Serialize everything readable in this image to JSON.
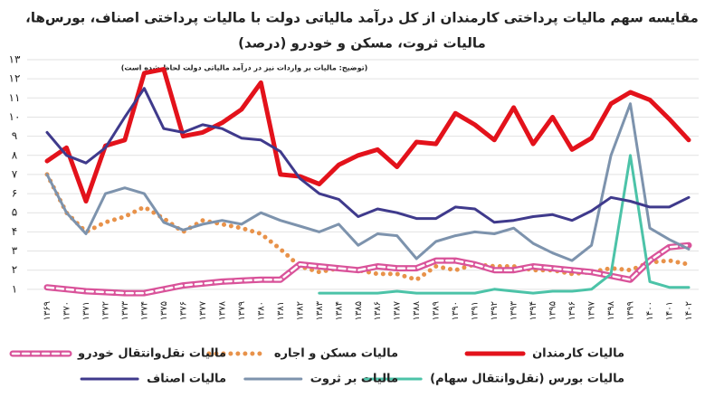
{
  "chart_data": {
    "type": "line",
    "title": "مقایسه سهم مالیات پرداختی کارمندان از کل درآمد مالیاتی دولت با مالیات پرداختی اصناف، بورس‌ها،",
    "subtitle": "مالیات ثروت، مسکن و خودرو (درصد)",
    "note": "(توضیح: مالیات بر واردات نیز در درآمد مالیاتی دولت لحاظ شده است)",
    "categories": [
      "۱۳۶۹",
      "۱۳۷۰",
      "۱۳۷۱",
      "۱۳۷۲",
      "۱۳۷۳",
      "۱۳۷۴",
      "۱۳۷۵",
      "۱۳۷۶",
      "۱۳۷۷",
      "۱۳۷۸",
      "۱۳۷۹",
      "۱۳۸۰",
      "۱۳۸۱",
      "۱۳۸۲",
      "۱۳۸۳",
      "۱۳۸۴",
      "۱۳۸۵",
      "۱۳۸۶",
      "۱۳۸۷",
      "۱۳۸۸",
      "۱۳۸۹",
      "۱۳۹۰",
      "۱۳۹۱",
      "۱۳۹۲",
      "۱۳۹۳",
      "۱۳۹۴",
      "۱۳۹۵",
      "۱۳۹۶",
      "۱۳۹۷",
      "۱۳۹۸",
      "۱۳۹۹",
      "۱۴۰۰",
      "۱۴۰۱",
      "۱۴۰۲"
    ],
    "ylim": [
      0,
      13
    ],
    "yticks": [
      {
        "value": 1,
        "label": "۱"
      },
      {
        "value": 2,
        "label": "۲"
      },
      {
        "value": 3,
        "label": "۳"
      },
      {
        "value": 4,
        "label": "۴"
      },
      {
        "value": 5,
        "label": "۵"
      },
      {
        "value": 6,
        "label": "۶"
      },
      {
        "value": 7,
        "label": "۷"
      },
      {
        "value": 8,
        "label": "۸"
      },
      {
        "value": 9,
        "label": "۹"
      },
      {
        "value": 10,
        "label": "۱۰"
      },
      {
        "value": 11,
        "label": "۱۱"
      },
      {
        "value": 12,
        "label": "۱۲"
      },
      {
        "value": 13,
        "label": "۱۳"
      }
    ],
    "grid": true,
    "series": [
      {
        "name": "مالیات کارمندان",
        "color": "#e3121b",
        "style": "bold",
        "values": [
          7.7,
          8.4,
          5.6,
          8.5,
          8.8,
          12.3,
          12.5,
          9.0,
          9.2,
          9.7,
          10.4,
          11.8,
          7.0,
          6.9,
          6.5,
          7.5,
          8.0,
          8.3,
          7.4,
          8.7,
          8.6,
          10.2,
          9.6,
          8.8,
          10.5,
          8.6,
          10.0,
          8.3,
          8.9,
          10.7,
          11.3,
          10.9,
          9.9,
          8.8
        ]
      },
      {
        "name": "مالیات مسکن و اجاره",
        "color": "#e8924a",
        "style": "dotted",
        "values": [
          7.0,
          5.0,
          4.0,
          4.5,
          4.8,
          5.3,
          4.7,
          4.0,
          4.6,
          4.4,
          4.2,
          3.9,
          3.1,
          2.2,
          1.9,
          2.1,
          2.0,
          1.8,
          1.8,
          1.5,
          2.2,
          2.0,
          2.3,
          2.2,
          2.2,
          2.0,
          2.0,
          1.8,
          1.9,
          2.1,
          2.0,
          2.4,
          2.5,
          2.3
        ]
      },
      {
        "name": "مالیات نقل‌وانتقال خودرو",
        "color": "#d9539a",
        "style": "striped",
        "values": [
          1.1,
          1.0,
          0.9,
          0.85,
          0.8,
          0.8,
          1.0,
          1.2,
          1.3,
          1.4,
          1.45,
          1.5,
          1.5,
          2.3,
          2.2,
          2.1,
          2.0,
          2.2,
          2.1,
          2.1,
          2.5,
          2.5,
          2.3,
          2.0,
          2.0,
          2.2,
          2.1,
          2.0,
          1.9,
          1.7,
          1.5,
          2.5,
          3.2,
          3.3
        ]
      },
      {
        "name": "مالیات بورس (نقل‌وانتقال سهام)",
        "color": "#4cc3a8",
        "style": "solid",
        "values": [
          null,
          null,
          null,
          null,
          null,
          null,
          null,
          null,
          null,
          null,
          null,
          null,
          null,
          null,
          0.8,
          0.8,
          0.8,
          0.8,
          0.9,
          0.8,
          0.8,
          0.8,
          0.8,
          1.0,
          0.9,
          0.8,
          0.9,
          0.9,
          1.0,
          1.8,
          8.0,
          1.4,
          1.1,
          1.1
        ]
      },
      {
        "name": "مالیات بر ثروت",
        "color": "#7d93ad",
        "style": "solid",
        "values": [
          7.0,
          5.0,
          3.9,
          6.0,
          6.3,
          6.0,
          4.5,
          4.1,
          4.4,
          4.6,
          4.4,
          5.0,
          4.6,
          4.3,
          4.0,
          4.4,
          3.3,
          3.9,
          3.8,
          2.6,
          3.5,
          3.8,
          4.0,
          3.9,
          4.2,
          3.4,
          2.9,
          2.5,
          3.3,
          8.0,
          10.7,
          4.2,
          3.6,
          3.1
        ]
      },
      {
        "name": "مالیات اصناف",
        "color": "#3f3a8c",
        "style": "solid",
        "values": [
          9.2,
          8.0,
          7.6,
          8.4,
          10.0,
          11.5,
          9.4,
          9.2,
          9.6,
          9.4,
          8.9,
          8.8,
          8.2,
          6.8,
          6.0,
          5.7,
          4.8,
          5.2,
          5.0,
          4.7,
          4.7,
          5.3,
          5.2,
          4.5,
          4.6,
          4.8,
          4.9,
          4.6,
          5.1,
          5.8,
          5.6,
          5.3,
          5.3,
          5.8
        ]
      }
    ]
  }
}
